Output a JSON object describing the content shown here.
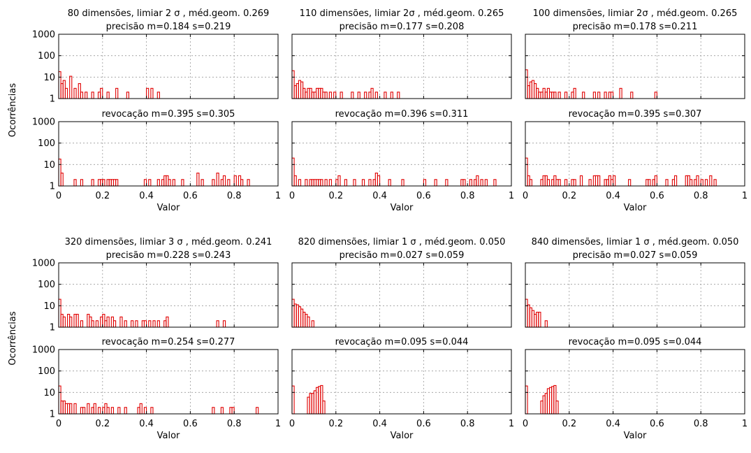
{
  "colors": {
    "bar": "#e00000",
    "frame": "#000000",
    "grid": "#9a9a9a"
  },
  "y_axis_label": "Ocorrências",
  "x_axis_label": "Valor",
  "x_ticks": [
    "0",
    "0.2",
    "0.4",
    "0.6",
    "0.8",
    "1"
  ],
  "y_ticks": [
    "1",
    "10",
    "100",
    "1000"
  ],
  "chart_data": [
    {
      "type": "bar",
      "row": 0,
      "col": 0,
      "title": "80 dimensões, limiar 2 σ , méd.geom. 0.269",
      "subtitle": "precisão m=0.184 s=0.219",
      "xlabel": "",
      "ylabel": "Ocorrências",
      "xlim": [
        0,
        1
      ],
      "ylim": [
        1,
        1000
      ],
      "ylog": true,
      "x": [
        0.0,
        0.01,
        0.02,
        0.03,
        0.05,
        0.07,
        0.09,
        0.1,
        0.12,
        0.15,
        0.18,
        0.19,
        0.22,
        0.26,
        0.31,
        0.4,
        0.42,
        0.45
      ],
      "values": [
        18,
        5,
        7,
        3,
        11,
        3,
        5,
        2,
        2,
        2,
        2,
        3,
        2,
        3,
        2,
        3,
        3,
        2
      ]
    },
    {
      "type": "bar",
      "row": 0,
      "col": 1,
      "title": "110 dimensões, limiar 2σ , méd.geom. 0.265",
      "subtitle": "precisão m=0.177 s=0.208",
      "xlabel": "",
      "ylabel": "",
      "xlim": [
        0,
        1
      ],
      "ylim": [
        1,
        1000
      ],
      "ylog": true,
      "x": [
        0.0,
        0.01,
        0.02,
        0.03,
        0.04,
        0.05,
        0.06,
        0.07,
        0.08,
        0.09,
        0.1,
        0.11,
        0.12,
        0.13,
        0.14,
        0.15,
        0.17,
        0.19,
        0.22,
        0.27,
        0.3,
        0.33,
        0.35,
        0.36,
        0.38,
        0.42,
        0.45,
        0.48
      ],
      "values": [
        20,
        4,
        5,
        7,
        6,
        3,
        2,
        3,
        3,
        2,
        2,
        3,
        3,
        3,
        2,
        2,
        2,
        2,
        2,
        2,
        2,
        2,
        2,
        3,
        2,
        2,
        2,
        2
      ]
    },
    {
      "type": "bar",
      "row": 0,
      "col": 2,
      "title": "100 dimensões, limiar 2σ , méd.geom. 0.265",
      "subtitle": "precisão m=0.178 s=0.211",
      "xlabel": "",
      "ylabel": "",
      "xlim": [
        0,
        1
      ],
      "ylim": [
        1,
        1000
      ],
      "ylog": true,
      "x": [
        0.0,
        0.01,
        0.02,
        0.03,
        0.04,
        0.05,
        0.06,
        0.07,
        0.08,
        0.09,
        0.1,
        0.11,
        0.12,
        0.13,
        0.15,
        0.18,
        0.21,
        0.22,
        0.26,
        0.31,
        0.33,
        0.36,
        0.38,
        0.39,
        0.43,
        0.48,
        0.59
      ],
      "values": [
        22,
        4,
        6,
        7,
        5,
        3,
        2,
        2,
        3,
        2,
        3,
        2,
        2,
        2,
        2,
        2,
        2,
        3,
        2,
        2,
        2,
        2,
        2,
        2,
        3,
        2,
        2
      ]
    },
    {
      "type": "bar",
      "row": 1,
      "col": 0,
      "title": "",
      "subtitle": "revocação m=0.395 s=0.305",
      "xlabel": "Valor",
      "ylabel": "Ocorrências",
      "xlim": [
        0,
        1
      ],
      "ylim": [
        1,
        1000
      ],
      "ylog": true,
      "x": [
        0.0,
        0.01,
        0.07,
        0.1,
        0.15,
        0.18,
        0.19,
        0.2,
        0.22,
        0.23,
        0.24,
        0.25,
        0.26,
        0.39,
        0.41,
        0.45,
        0.47,
        0.48,
        0.49,
        0.5,
        0.52,
        0.56,
        0.63,
        0.65,
        0.7,
        0.72,
        0.74,
        0.75,
        0.77,
        0.8,
        0.82,
        0.83,
        0.86
      ],
      "values": [
        18,
        4,
        2,
        2,
        2,
        2,
        2,
        2,
        2,
        2,
        2,
        2,
        2,
        2,
        2,
        2,
        2,
        3,
        3,
        2,
        2,
        2,
        4,
        2,
        2,
        4,
        2,
        3,
        2,
        3,
        3,
        2,
        2
      ]
    },
    {
      "type": "bar",
      "row": 1,
      "col": 1,
      "title": "",
      "subtitle": "revocação m=0.396 s=0.311",
      "xlabel": "Valor",
      "ylabel": "",
      "xlim": [
        0,
        1
      ],
      "ylim": [
        1,
        1000
      ],
      "ylog": true,
      "x": [
        0.0,
        0.01,
        0.03,
        0.06,
        0.08,
        0.09,
        0.1,
        0.11,
        0.12,
        0.13,
        0.15,
        0.17,
        0.2,
        0.21,
        0.24,
        0.28,
        0.32,
        0.35,
        0.37,
        0.38,
        0.39,
        0.44,
        0.5,
        0.6,
        0.65,
        0.7,
        0.77,
        0.78,
        0.81,
        0.83,
        0.84,
        0.86,
        0.88,
        0.92
      ],
      "values": [
        20,
        3,
        2,
        2,
        2,
        2,
        2,
        2,
        2,
        2,
        2,
        2,
        2,
        3,
        2,
        2,
        2,
        2,
        2,
        4,
        3,
        2,
        2,
        2,
        2,
        2,
        2,
        2,
        2,
        2,
        3,
        2,
        2,
        2
      ]
    },
    {
      "type": "bar",
      "row": 1,
      "col": 2,
      "title": "",
      "subtitle": "revocação m=0.395 s=0.307",
      "xlabel": "Valor",
      "ylabel": "",
      "xlim": [
        0,
        1
      ],
      "ylim": [
        1,
        1000
      ],
      "ylog": true,
      "x": [
        0.0,
        0.01,
        0.02,
        0.07,
        0.08,
        0.09,
        0.1,
        0.12,
        0.13,
        0.14,
        0.15,
        0.18,
        0.21,
        0.22,
        0.25,
        0.29,
        0.31,
        0.32,
        0.33,
        0.36,
        0.37,
        0.38,
        0.39,
        0.4,
        0.47,
        0.55,
        0.56,
        0.58,
        0.59,
        0.64,
        0.67,
        0.68,
        0.73,
        0.74,
        0.75,
        0.77,
        0.78,
        0.8,
        0.82,
        0.84,
        0.86
      ],
      "values": [
        20,
        3,
        2,
        2,
        3,
        3,
        2,
        2,
        3,
        2,
        2,
        2,
        2,
        2,
        3,
        2,
        3,
        3,
        3,
        2,
        2,
        3,
        2,
        3,
        2,
        2,
        2,
        2,
        3,
        2,
        2,
        3,
        3,
        3,
        2,
        2,
        3,
        2,
        2,
        3,
        2
      ]
    },
    {
      "type": "bar",
      "row": 2,
      "col": 0,
      "title": "320 dimensões, limiar 3 σ , méd.geom. 0.241",
      "subtitle": "precisão m=0.228 s=0.243",
      "xlabel": "",
      "ylabel": "Ocorrências",
      "xlim": [
        0,
        1
      ],
      "ylim": [
        1,
        1000
      ],
      "ylog": true,
      "x": [
        0.0,
        0.01,
        0.02,
        0.04,
        0.05,
        0.07,
        0.08,
        0.1,
        0.13,
        0.14,
        0.15,
        0.17,
        0.19,
        0.2,
        0.21,
        0.22,
        0.24,
        0.25,
        0.28,
        0.3,
        0.33,
        0.35,
        0.38,
        0.39,
        0.41,
        0.43,
        0.45,
        0.48,
        0.49,
        0.72,
        0.75
      ],
      "values": [
        20,
        4,
        3,
        4,
        3,
        4,
        4,
        2,
        4,
        3,
        2,
        2,
        3,
        4,
        2,
        3,
        3,
        2,
        3,
        2,
        2,
        2,
        2,
        2,
        2,
        2,
        2,
        2,
        3,
        2,
        2
      ]
    },
    {
      "type": "bar",
      "row": 2,
      "col": 1,
      "title": "820 dimensões, limiar 1 σ , méd.geom. 0.050",
      "subtitle": "precisão m=0.027 s=0.059",
      "xlabel": "",
      "ylabel": "",
      "xlim": [
        0,
        1
      ],
      "ylim": [
        1,
        1000
      ],
      "ylog": true,
      "x": [
        0.0,
        0.01,
        0.02,
        0.03,
        0.04,
        0.05,
        0.06,
        0.07,
        0.09
      ],
      "values": [
        20,
        12,
        11,
        9,
        7,
        5,
        4,
        3,
        2
      ]
    },
    {
      "type": "bar",
      "row": 2,
      "col": 2,
      "title": "840 dimensões, limiar 1 σ , méd.geom. 0.050",
      "subtitle": "precisão m=0.027 s=0.059",
      "xlabel": "",
      "ylabel": "",
      "xlim": [
        0,
        1
      ],
      "ylim": [
        1,
        1000
      ],
      "ylog": true,
      "x": [
        0.0,
        0.01,
        0.02,
        0.03,
        0.04,
        0.05,
        0.06,
        0.09
      ],
      "values": [
        20,
        11,
        8,
        6,
        4,
        5,
        5,
        2
      ]
    },
    {
      "type": "bar",
      "row": 3,
      "col": 0,
      "title": "",
      "subtitle": "revocação m=0.254 s=0.277",
      "xlabel": "Valor",
      "ylabel": "Ocorrências",
      "xlim": [
        0,
        1
      ],
      "ylim": [
        1,
        1000
      ],
      "ylog": true,
      "x": [
        0.0,
        0.01,
        0.02,
        0.03,
        0.04,
        0.05,
        0.07,
        0.1,
        0.11,
        0.13,
        0.15,
        0.16,
        0.18,
        0.2,
        0.21,
        0.22,
        0.24,
        0.27,
        0.3,
        0.36,
        0.37,
        0.39,
        0.42,
        0.7,
        0.74,
        0.78,
        0.79,
        0.9
      ],
      "values": [
        20,
        4,
        4,
        3,
        3,
        3,
        3,
        2,
        2,
        3,
        2,
        3,
        2,
        2,
        3,
        2,
        2,
        2,
        2,
        2,
        3,
        2,
        2,
        2,
        2,
        2,
        2,
        2
      ]
    },
    {
      "type": "bar",
      "row": 3,
      "col": 1,
      "title": "",
      "subtitle": "revocação m=0.095 s=0.044",
      "xlabel": "Valor",
      "ylabel": "",
      "xlim": [
        0,
        1
      ],
      "ylim": [
        1,
        1000
      ],
      "ylog": true,
      "x": [
        0.0,
        0.07,
        0.08,
        0.09,
        0.1,
        0.11,
        0.12,
        0.13,
        0.14
      ],
      "values": [
        20,
        6,
        9,
        9,
        12,
        17,
        19,
        21,
        4
      ]
    },
    {
      "type": "bar",
      "row": 3,
      "col": 2,
      "title": "",
      "subtitle": "revocação m=0.095 s=0.044",
      "xlabel": "Valor",
      "ylabel": "",
      "xlim": [
        0,
        1
      ],
      "ylim": [
        1,
        1000
      ],
      "ylog": true,
      "x": [
        0.0,
        0.07,
        0.08,
        0.09,
        0.1,
        0.11,
        0.12,
        0.13,
        0.14
      ],
      "values": [
        20,
        4,
        7,
        9,
        15,
        17,
        19,
        21,
        4
      ]
    }
  ]
}
